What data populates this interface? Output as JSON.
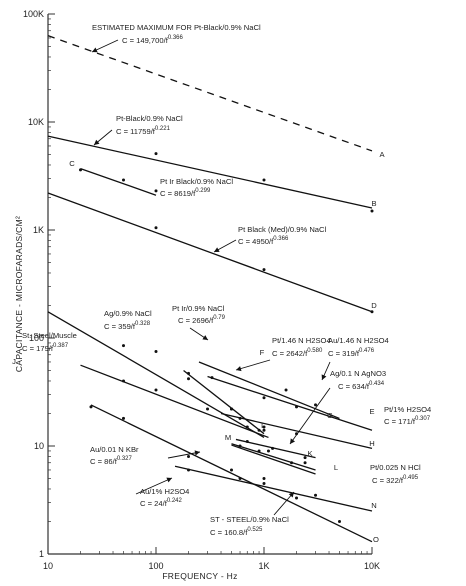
{
  "chart_data": {
    "type": "line",
    "title": "",
    "xlabel": "FREQUENCY - Hz",
    "ylabel": "CAPACITANCE - MICROFARADS/CM²",
    "xscale": "log",
    "yscale": "log",
    "xlim": [
      10,
      10000
    ],
    "ylim": [
      1,
      100000
    ],
    "x_tick_labels": [
      "10",
      "100",
      "1K",
      "10K"
    ],
    "y_tick_labels": [
      "1",
      "10",
      "100",
      "1K",
      "10K",
      "100K"
    ],
    "grid": false,
    "legend": "none",
    "series": [
      {
        "name": "A",
        "dash": true,
        "x": [
          10,
          10000
        ],
        "y": [
          63000,
          5400
        ],
        "label_lines": [
          [
            "ESTIMATED MAXIMUM FOR Pt-Black/0.9% NaCl"
          ],
          [
            "C = 149,700/f",
            "0.366"
          ]
        ]
      },
      {
        "name": "B",
        "x": [
          10,
          10000
        ],
        "y": [
          7400,
          1600
        ],
        "points": [
          [
            100,
            5100
          ],
          [
            1000,
            2900
          ],
          [
            10000,
            1500
          ]
        ],
        "label_lines": [
          [
            "Pt-Black/0.9% NaCl"
          ],
          [
            "C = 11759/f",
            "0.221"
          ]
        ]
      },
      {
        "name": "C",
        "x": [
          20,
          100
        ],
        "y": [
          3700,
          2100
        ],
        "points": [
          [
            20,
            3600
          ],
          [
            50,
            2900
          ],
          [
            100,
            2300
          ]
        ],
        "label_lines": [
          [
            "Pt Ir Black/0.9% NaCl"
          ],
          [
            "C = 8619/f",
            "0.299"
          ]
        ]
      },
      {
        "name": "D",
        "x": [
          10,
          10000
        ],
        "y": [
          2200,
          175
        ],
        "points": [
          [
            100,
            1050
          ],
          [
            1000,
            430
          ],
          [
            10000,
            175
          ]
        ],
        "label_lines": [
          [
            "Pt Black (Med)/0.9% NaCl"
          ],
          [
            "C = 4950/f",
            "0.366"
          ]
        ]
      },
      {
        "name": "E",
        "x": [
          300,
          10000
        ],
        "y": [
          44,
          14
        ],
        "points": [
          [
            330,
            43
          ],
          [
            1000,
            28
          ],
          [
            2000,
            23
          ]
        ],
        "label_lines": [
          [
            "Pt/1.46 N H2SO4"
          ],
          [
            "C = 2642/f",
            "0.580"
          ]
        ]
      },
      {
        "name": "G",
        "x": [
          250,
          5000
        ],
        "y": [
          60,
          18
        ],
        "points": [
          [
            1600,
            33
          ],
          [
            3000,
            24
          ]
        ],
        "label_lines": [
          [
            "Au/1.46 N H2SO4"
          ],
          [
            "C = 319/f",
            "0.476"
          ]
        ]
      },
      {
        "name": "H",
        "x": [
          400,
          10000
        ],
        "y": [
          20,
          9.5
        ],
        "points": [
          [
            600,
            18
          ],
          [
            1000,
            15
          ],
          [
            2000,
            13
          ]
        ],
        "label_lines": [
          [
            "Pt/1% H2SO4"
          ],
          [
            "C = 171/f",
            "0.307"
          ]
        ]
      },
      {
        "name": "I",
        "x": [
          10,
          1000
        ],
        "y": [
          175,
          12
        ],
        "points": [
          [
            50,
            85
          ],
          [
            100,
            75
          ],
          [
            200,
            42
          ],
          [
            500,
            22
          ],
          [
            1000,
            14
          ]
        ],
        "label_lines": [
          [
            "Ag/0.9% NaCl"
          ],
          [
            "C = 359/f",
            "0.328"
          ]
        ]
      },
      {
        "name": "J",
        "x": [
          20,
          1100
        ],
        "y": [
          56,
          12
        ],
        "points": [
          [
            50,
            40
          ],
          [
            100,
            33
          ],
          [
            300,
            22
          ],
          [
            700,
            15
          ]
        ],
        "label_lines": [
          [
            "St. Steel/Muscle"
          ],
          [
            "C = 179/f",
            "0.387"
          ]
        ]
      },
      {
        "name": "F",
        "x": [
          180,
          1000
        ],
        "y": [
          50,
          13
        ],
        "points": [
          [
            200,
            47
          ],
          [
            500,
            22
          ],
          [
            900,
            14
          ]
        ],
        "label_lines": [
          [
            "Pt Ir/0.9% NaCl"
          ],
          [
            "C = 2696/f",
            "0.79"
          ]
        ]
      },
      {
        "name": "K",
        "x": [
          550,
          3000
        ],
        "y": [
          11.5,
          7.8
        ],
        "points": [
          [
            700,
            11
          ],
          [
            1200,
            9.5
          ],
          [
            2400,
            7.8
          ]
        ],
        "label_lines": [
          [
            "Ag/0.1 N AgNO3"
          ],
          [
            "C = 634/f",
            "0.434"
          ]
        ]
      },
      {
        "name": "L",
        "x": [
          500,
          3000
        ],
        "y": [
          10.2,
          5.5
        ],
        "points": [
          [
            900,
            9
          ],
          [
            1800,
            7
          ]
        ],
        "label_lines": [
          [
            "Pt/0.025 N HCl"
          ],
          [
            "C = 322/f",
            "0.495"
          ]
        ]
      },
      {
        "name": "M",
        "x": [
          500,
          3000
        ],
        "y": [
          10.5,
          6
        ],
        "points": [
          [
            600,
            10
          ],
          [
            1100,
            9
          ],
          [
            2400,
            7
          ]
        ],
        "label_lines": [
          [
            "Au/0.01 N KBr"
          ],
          [
            "C = 86/f",
            "0.327"
          ]
        ]
      },
      {
        "name": "N",
        "x": [
          150,
          10000
        ],
        "y": [
          6.5,
          2.5
        ],
        "points": [
          [
            200,
            6
          ],
          [
            600,
            5
          ],
          [
            1000,
            4.5
          ],
          [
            3000,
            3.5
          ]
        ],
        "label_lines": [
          [
            "Au/1% H2SO4"
          ],
          [
            "C = 24/f",
            "0.242"
          ]
        ]
      },
      {
        "name": "O",
        "x": [
          25,
          10000
        ],
        "y": [
          24,
          1.3
        ],
        "points": [
          [
            25,
            23
          ],
          [
            50,
            18
          ],
          [
            200,
            8
          ],
          [
            500,
            6
          ],
          [
            1000,
            5
          ],
          [
            2000,
            3.3
          ],
          [
            5000,
            2
          ]
        ],
        "label_lines": [
          [
            "ST - STEEL/0.9% NaCl"
          ],
          [
            "C = 160.8/f",
            "0.525"
          ]
        ]
      }
    ]
  }
}
